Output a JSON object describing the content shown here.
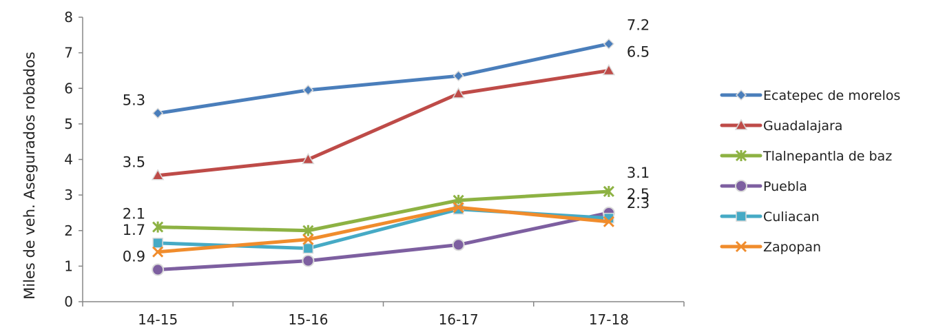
{
  "chart_data": {
    "type": "line",
    "title": "",
    "xlabel": "",
    "ylabel": "Miles de veh. Asegurados robados",
    "categories": [
      "14-15",
      "15-16",
      "16-17",
      "17-18"
    ],
    "ylim": [
      0,
      8
    ],
    "yticks": [
      "0",
      "1",
      "2",
      "3",
      "4",
      "5",
      "6",
      "7",
      "8"
    ],
    "grid": false,
    "legend_position": "right",
    "series": [
      {
        "name": "Ecatepec de morelos",
        "values": [
          5.3,
          5.95,
          6.35,
          7.25
        ],
        "color": "#4a7ebb",
        "marker": "diamond"
      },
      {
        "name": "Guadalajara",
        "values": [
          3.55,
          4.0,
          5.85,
          6.5
        ],
        "color": "#be4b48",
        "marker": "triangle"
      },
      {
        "name": "Tlalnepantla de baz",
        "values": [
          2.1,
          2.0,
          2.85,
          3.1
        ],
        "color": "#8db243",
        "marker": "star"
      },
      {
        "name": "Puebla",
        "values": [
          0.9,
          1.15,
          1.6,
          2.5
        ],
        "color": "#7d5fa0",
        "marker": "circle"
      },
      {
        "name": "Culiacan",
        "values": [
          1.65,
          1.5,
          2.6,
          2.35
        ],
        "color": "#46aac5",
        "marker": "square"
      },
      {
        "name": "Zapopan",
        "values": [
          1.4,
          1.75,
          2.65,
          2.25
        ],
        "color": "#f08c2c",
        "marker": "x"
      }
    ],
    "annotations": [
      {
        "text": "5.3",
        "series": 0,
        "point": 0,
        "side": "left"
      },
      {
        "text": "7.2",
        "series": 0,
        "point": 3,
        "side": "right"
      },
      {
        "text": "3.5",
        "series": 1,
        "point": 0,
        "side": "left"
      },
      {
        "text": "6.5",
        "series": 1,
        "point": 3,
        "side": "right"
      },
      {
        "text": "2.1",
        "series": 2,
        "point": 0,
        "side": "left"
      },
      {
        "text": "3.1",
        "series": 2,
        "point": 3,
        "side": "right"
      },
      {
        "text": "1.7",
        "series": 4,
        "point": 0,
        "side": "left"
      },
      {
        "text": "0.9",
        "series": 3,
        "point": 0,
        "side": "left"
      },
      {
        "text": "2.5",
        "series": 3,
        "point": 3,
        "side": "right"
      },
      {
        "text": "2.3",
        "series": 5,
        "point": 3,
        "side": "right"
      }
    ]
  }
}
